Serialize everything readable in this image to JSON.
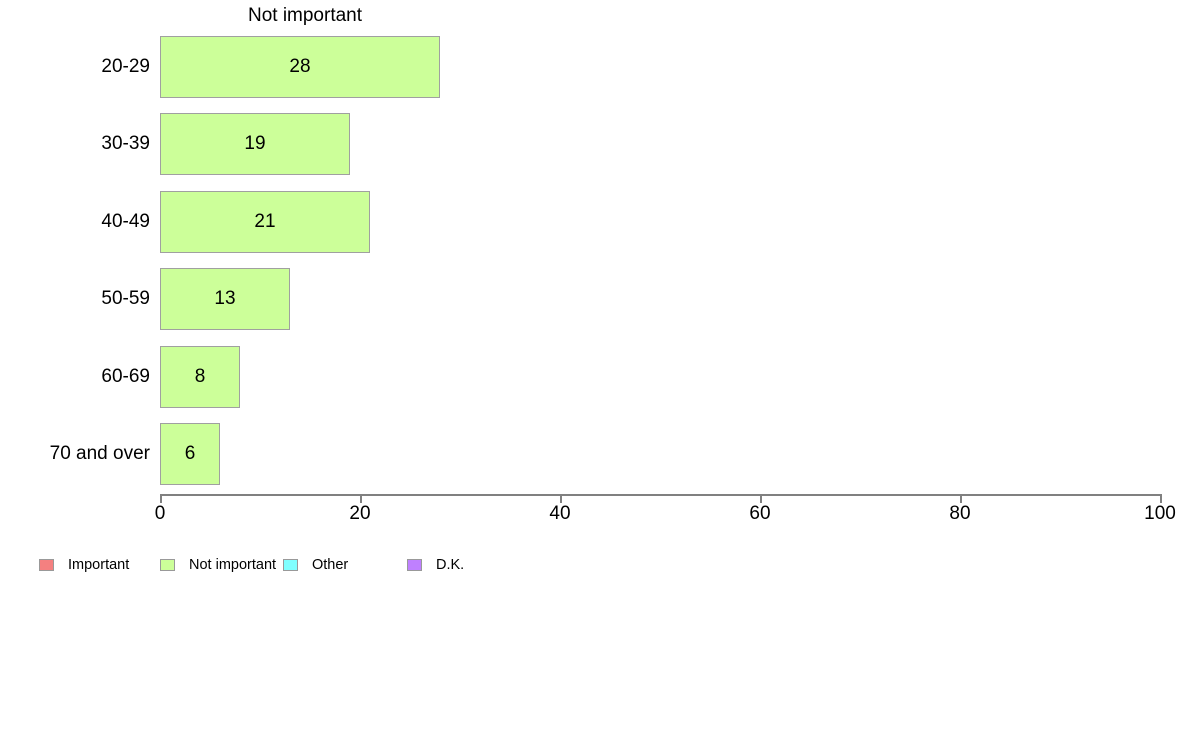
{
  "chart_data": {
    "type": "bar",
    "orientation": "horizontal",
    "title": "Not important",
    "categories": [
      "20-29",
      "30-39",
      "40-49",
      "50-59",
      "60-69",
      "70 and over"
    ],
    "values": [
      28,
      19,
      21,
      13,
      8,
      6
    ],
    "value_labels_inside_bars": true,
    "xlim": [
      0,
      100
    ],
    "x_ticks": [
      "0",
      "20",
      "40",
      "60",
      "80",
      "100"
    ],
    "grid": false,
    "bar_color": "#ccff99",
    "bar_border_color": "#a0a0a0",
    "axis_color": "#808080",
    "legend_position": "bottom",
    "legend": [
      {
        "label": "Important",
        "color": "#f48080"
      },
      {
        "label": "Not important",
        "color": "#ccff99"
      },
      {
        "label": "Other",
        "color": "#80ffff"
      },
      {
        "label": "D.K.",
        "color": "#bf80ff"
      }
    ]
  }
}
